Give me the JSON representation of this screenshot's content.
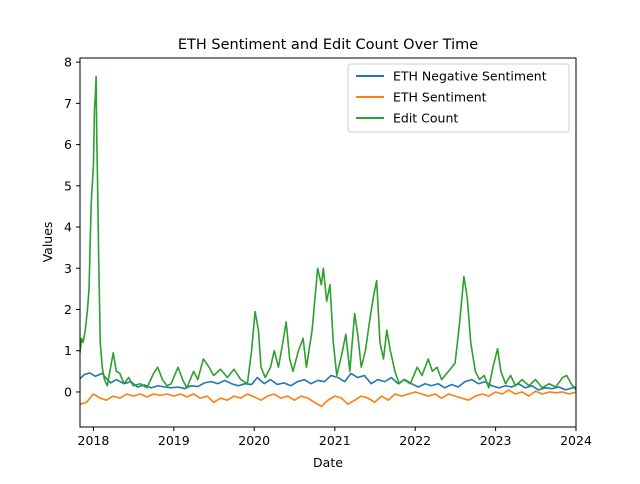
{
  "chart_data": {
    "type": "line",
    "title": "ETH Sentiment and Edit Count Over Time",
    "xlabel": "Date",
    "ylabel": "Values",
    "xlim": [
      "2017-11-01",
      "2024-01-01"
    ],
    "ylim": [
      -0.85,
      8.1
    ],
    "x_ticks": [
      "2018",
      "2019",
      "2020",
      "2021",
      "2022",
      "2023",
      "2024"
    ],
    "y_ticks": [
      "0",
      "1",
      "2",
      "3",
      "4",
      "5",
      "6",
      "7",
      "8"
    ],
    "grid": false,
    "legend": "top-right",
    "series": [
      {
        "name": "ETH Negative Sentiment",
        "color": "#1f77b4",
        "points": [
          [
            "2017-11-01",
            0.32
          ],
          [
            "2017-11-20",
            0.42
          ],
          [
            "2017-12-15",
            0.46
          ],
          [
            "2018-01-10",
            0.38
          ],
          [
            "2018-02-10",
            0.45
          ],
          [
            "2018-02-25",
            0.35
          ],
          [
            "2018-03-20",
            0.22
          ],
          [
            "2018-04-15",
            0.3
          ],
          [
            "2018-05-20",
            0.2
          ],
          [
            "2018-06-20",
            0.25
          ],
          [
            "2018-07-20",
            0.12
          ],
          [
            "2018-08-20",
            0.17
          ],
          [
            "2018-09-20",
            0.1
          ],
          [
            "2018-10-20",
            0.15
          ],
          [
            "2018-11-20",
            0.12
          ],
          [
            "2018-12-20",
            0.1
          ],
          [
            "2019-01-20",
            0.12
          ],
          [
            "2019-02-20",
            0.08
          ],
          [
            "2019-03-20",
            0.15
          ],
          [
            "2019-04-20",
            0.13
          ],
          [
            "2019-05-20",
            0.22
          ],
          [
            "2019-06-20",
            0.25
          ],
          [
            "2019-07-20",
            0.2
          ],
          [
            "2019-08-20",
            0.28
          ],
          [
            "2019-09-20",
            0.2
          ],
          [
            "2019-10-20",
            0.15
          ],
          [
            "2019-11-20",
            0.2
          ],
          [
            "2019-12-20",
            0.18
          ],
          [
            "2020-01-15",
            0.35
          ],
          [
            "2020-02-15",
            0.2
          ],
          [
            "2020-03-15",
            0.3
          ],
          [
            "2020-04-15",
            0.18
          ],
          [
            "2020-05-15",
            0.22
          ],
          [
            "2020-06-15",
            0.15
          ],
          [
            "2020-07-15",
            0.25
          ],
          [
            "2020-08-15",
            0.3
          ],
          [
            "2020-09-15",
            0.2
          ],
          [
            "2020-10-15",
            0.28
          ],
          [
            "2020-11-15",
            0.25
          ],
          [
            "2020-12-15",
            0.4
          ],
          [
            "2021-01-15",
            0.35
          ],
          [
            "2021-02-15",
            0.25
          ],
          [
            "2021-03-15",
            0.45
          ],
          [
            "2021-04-15",
            0.35
          ],
          [
            "2021-05-15",
            0.4
          ],
          [
            "2021-06-15",
            0.2
          ],
          [
            "2021-07-15",
            0.3
          ],
          [
            "2021-08-15",
            0.25
          ],
          [
            "2021-09-15",
            0.35
          ],
          [
            "2021-10-15",
            0.2
          ],
          [
            "2021-11-15",
            0.3
          ],
          [
            "2021-12-15",
            0.2
          ],
          [
            "2022-01-15",
            0.12
          ],
          [
            "2022-02-15",
            0.2
          ],
          [
            "2022-03-15",
            0.15
          ],
          [
            "2022-04-15",
            0.2
          ],
          [
            "2022-05-15",
            0.1
          ],
          [
            "2022-06-15",
            0.18
          ],
          [
            "2022-07-15",
            0.12
          ],
          [
            "2022-08-15",
            0.25
          ],
          [
            "2022-09-15",
            0.3
          ],
          [
            "2022-10-15",
            0.2
          ],
          [
            "2022-11-15",
            0.25
          ],
          [
            "2022-12-15",
            0.15
          ],
          [
            "2023-01-15",
            0.1
          ],
          [
            "2023-02-15",
            0.15
          ],
          [
            "2023-03-15",
            0.12
          ],
          [
            "2023-04-15",
            0.2
          ],
          [
            "2023-05-15",
            0.1
          ],
          [
            "2023-06-15",
            0.15
          ],
          [
            "2023-07-15",
            0.05
          ],
          [
            "2023-08-15",
            0.1
          ],
          [
            "2023-09-15",
            0.08
          ],
          [
            "2023-10-15",
            0.12
          ],
          [
            "2023-11-15",
            0.05
          ],
          [
            "2023-12-15",
            0.1
          ],
          [
            "2024-01-01",
            0.12
          ]
        ]
      },
      {
        "name": "ETH Sentiment",
        "color": "#ff7f0e",
        "points": [
          [
            "2017-11-01",
            -0.3
          ],
          [
            "2017-12-01",
            -0.25
          ],
          [
            "2018-01-01",
            -0.05
          ],
          [
            "2018-02-01",
            -0.15
          ],
          [
            "2018-03-01",
            -0.2
          ],
          [
            "2018-04-01",
            -0.1
          ],
          [
            "2018-05-01",
            -0.15
          ],
          [
            "2018-06-01",
            -0.05
          ],
          [
            "2018-07-01",
            -0.1
          ],
          [
            "2018-08-01",
            -0.05
          ],
          [
            "2018-09-01",
            -0.12
          ],
          [
            "2018-10-01",
            -0.05
          ],
          [
            "2018-11-01",
            -0.08
          ],
          [
            "2018-12-01",
            -0.05
          ],
          [
            "2019-01-01",
            -0.1
          ],
          [
            "2019-02-01",
            -0.05
          ],
          [
            "2019-03-01",
            -0.12
          ],
          [
            "2019-04-01",
            -0.05
          ],
          [
            "2019-05-01",
            -0.15
          ],
          [
            "2019-06-01",
            -0.1
          ],
          [
            "2019-07-01",
            -0.25
          ],
          [
            "2019-08-01",
            -0.15
          ],
          [
            "2019-09-01",
            -0.2
          ],
          [
            "2019-10-01",
            -0.1
          ],
          [
            "2019-11-01",
            -0.15
          ],
          [
            "2019-12-01",
            -0.05
          ],
          [
            "2020-01-01",
            -0.12
          ],
          [
            "2020-02-01",
            -0.2
          ],
          [
            "2020-03-01",
            -0.1
          ],
          [
            "2020-04-01",
            -0.05
          ],
          [
            "2020-05-01",
            -0.15
          ],
          [
            "2020-06-01",
            -0.1
          ],
          [
            "2020-07-01",
            -0.2
          ],
          [
            "2020-08-01",
            -0.1
          ],
          [
            "2020-09-01",
            -0.15
          ],
          [
            "2020-10-01",
            -0.25
          ],
          [
            "2020-11-01",
            -0.35
          ],
          [
            "2020-12-01",
            -0.2
          ],
          [
            "2021-01-01",
            -0.1
          ],
          [
            "2021-02-01",
            -0.15
          ],
          [
            "2021-03-01",
            -0.3
          ],
          [
            "2021-04-01",
            -0.2
          ],
          [
            "2021-05-01",
            -0.1
          ],
          [
            "2021-06-01",
            -0.15
          ],
          [
            "2021-07-01",
            -0.25
          ],
          [
            "2021-08-01",
            -0.1
          ],
          [
            "2021-09-01",
            -0.2
          ],
          [
            "2021-10-01",
            -0.05
          ],
          [
            "2021-11-01",
            -0.1
          ],
          [
            "2021-12-01",
            -0.05
          ],
          [
            "2022-01-01",
            0.0
          ],
          [
            "2022-02-01",
            -0.05
          ],
          [
            "2022-03-01",
            -0.1
          ],
          [
            "2022-04-01",
            -0.05
          ],
          [
            "2022-05-01",
            -0.15
          ],
          [
            "2022-06-01",
            -0.05
          ],
          [
            "2022-07-01",
            -0.1
          ],
          [
            "2022-08-01",
            -0.15
          ],
          [
            "2022-09-01",
            -0.2
          ],
          [
            "2022-10-01",
            -0.1
          ],
          [
            "2022-11-01",
            -0.05
          ],
          [
            "2022-12-01",
            -0.1
          ],
          [
            "2023-01-01",
            0.0
          ],
          [
            "2023-02-01",
            -0.05
          ],
          [
            "2023-03-01",
            0.05
          ],
          [
            "2023-04-01",
            -0.05
          ],
          [
            "2023-05-01",
            0.0
          ],
          [
            "2023-06-01",
            -0.1
          ],
          [
            "2023-07-01",
            0.02
          ],
          [
            "2023-08-01",
            -0.05
          ],
          [
            "2023-09-01",
            0.0
          ],
          [
            "2023-10-01",
            -0.02
          ],
          [
            "2023-11-01",
            0.0
          ],
          [
            "2023-12-01",
            -0.05
          ],
          [
            "2024-01-01",
            0.0
          ]
        ]
      },
      {
        "name": "Edit Count",
        "color": "#2ca02c",
        "points": [
          [
            "2017-11-01",
            0.95
          ],
          [
            "2017-11-08",
            1.3
          ],
          [
            "2017-11-15",
            1.2
          ],
          [
            "2017-11-25",
            1.5
          ],
          [
            "2017-12-05",
            2.0
          ],
          [
            "2017-12-12",
            2.5
          ],
          [
            "2017-12-18",
            3.8
          ],
          [
            "2017-12-22",
            4.6
          ],
          [
            "2018-01-01",
            5.5
          ],
          [
            "2018-01-06",
            6.9
          ],
          [
            "2018-01-10",
            7.2
          ],
          [
            "2018-01-13",
            7.65
          ],
          [
            "2018-01-16",
            6.2
          ],
          [
            "2018-01-20",
            5.0
          ],
          [
            "2018-01-25",
            3.2
          ],
          [
            "2018-02-01",
            1.2
          ],
          [
            "2018-02-10",
            0.6
          ],
          [
            "2018-02-20",
            0.3
          ],
          [
            "2018-03-05",
            0.15
          ],
          [
            "2018-03-20",
            0.6
          ],
          [
            "2018-04-01",
            0.95
          ],
          [
            "2018-04-15",
            0.5
          ],
          [
            "2018-05-01",
            0.45
          ],
          [
            "2018-05-20",
            0.2
          ],
          [
            "2018-06-10",
            0.35
          ],
          [
            "2018-07-01",
            0.15
          ],
          [
            "2018-08-01",
            0.2
          ],
          [
            "2018-09-01",
            0.1
          ],
          [
            "2018-10-01",
            0.45
          ],
          [
            "2018-10-20",
            0.6
          ],
          [
            "2018-11-10",
            0.3
          ],
          [
            "2018-12-01",
            0.15
          ],
          [
            "2018-12-20",
            0.2
          ],
          [
            "2019-01-20",
            0.6
          ],
          [
            "2019-02-10",
            0.3
          ],
          [
            "2019-03-01",
            0.1
          ],
          [
            "2019-04-01",
            0.5
          ],
          [
            "2019-04-20",
            0.3
          ],
          [
            "2019-05-15",
            0.8
          ],
          [
            "2019-06-10",
            0.6
          ],
          [
            "2019-07-01",
            0.4
          ],
          [
            "2019-08-01",
            0.55
          ],
          [
            "2019-09-01",
            0.35
          ],
          [
            "2019-10-01",
            0.55
          ],
          [
            "2019-11-01",
            0.3
          ],
          [
            "2019-12-01",
            0.2
          ],
          [
            "2019-12-20",
            1.0
          ],
          [
            "2020-01-05",
            1.95
          ],
          [
            "2020-01-20",
            1.5
          ],
          [
            "2020-02-01",
            0.6
          ],
          [
            "2020-02-20",
            0.35
          ],
          [
            "2020-03-15",
            0.6
          ],
          [
            "2020-04-01",
            1.0
          ],
          [
            "2020-04-20",
            0.6
          ],
          [
            "2020-05-10",
            1.2
          ],
          [
            "2020-05-25",
            1.7
          ],
          [
            "2020-06-10",
            0.8
          ],
          [
            "2020-06-25",
            0.5
          ],
          [
            "2020-07-20",
            1.0
          ],
          [
            "2020-08-10",
            1.3
          ],
          [
            "2020-08-25",
            0.6
          ],
          [
            "2020-09-20",
            1.5
          ],
          [
            "2020-10-05",
            2.4
          ],
          [
            "2020-10-15",
            3.0
          ],
          [
            "2020-11-01",
            2.6
          ],
          [
            "2020-11-10",
            3.0
          ],
          [
            "2020-11-25",
            2.2
          ],
          [
            "2020-12-10",
            2.6
          ],
          [
            "2020-12-25",
            1.2
          ],
          [
            "2021-01-10",
            0.4
          ],
          [
            "2021-02-01",
            0.9
          ],
          [
            "2021-02-20",
            1.4
          ],
          [
            "2021-03-10",
            0.5
          ],
          [
            "2021-04-01",
            1.9
          ],
          [
            "2021-04-15",
            1.4
          ],
          [
            "2021-05-01",
            0.6
          ],
          [
            "2021-05-20",
            1.0
          ],
          [
            "2021-06-10",
            1.8
          ],
          [
            "2021-06-25",
            2.3
          ],
          [
            "2021-07-10",
            2.7
          ],
          [
            "2021-07-25",
            1.2
          ],
          [
            "2021-08-10",
            0.8
          ],
          [
            "2021-08-25",
            1.5
          ],
          [
            "2021-09-10",
            1.0
          ],
          [
            "2021-10-01",
            0.5
          ],
          [
            "2021-10-20",
            0.2
          ],
          [
            "2021-11-10",
            0.3
          ],
          [
            "2021-12-10",
            0.2
          ],
          [
            "2022-01-10",
            0.6
          ],
          [
            "2022-02-01",
            0.4
          ],
          [
            "2022-03-01",
            0.8
          ],
          [
            "2022-03-20",
            0.5
          ],
          [
            "2022-04-10",
            0.6
          ],
          [
            "2022-05-01",
            0.3
          ],
          [
            "2022-06-01",
            0.5
          ],
          [
            "2022-07-01",
            0.7
          ],
          [
            "2022-07-20",
            1.6
          ],
          [
            "2022-08-10",
            2.8
          ],
          [
            "2022-08-25",
            2.3
          ],
          [
            "2022-09-10",
            1.2
          ],
          [
            "2022-10-01",
            0.5
          ],
          [
            "2022-10-20",
            0.3
          ],
          [
            "2022-11-10",
            0.4
          ],
          [
            "2022-12-01",
            0.1
          ],
          [
            "2022-12-20",
            0.6
          ],
          [
            "2023-01-10",
            1.05
          ],
          [
            "2023-01-25",
            0.5
          ],
          [
            "2023-02-15",
            0.2
          ],
          [
            "2023-03-10",
            0.4
          ],
          [
            "2023-04-01",
            0.15
          ],
          [
            "2023-05-01",
            0.3
          ],
          [
            "2023-06-01",
            0.15
          ],
          [
            "2023-07-01",
            0.3
          ],
          [
            "2023-08-01",
            0.1
          ],
          [
            "2023-09-01",
            0.2
          ],
          [
            "2023-10-01",
            0.12
          ],
          [
            "2023-11-01",
            0.35
          ],
          [
            "2023-11-20",
            0.4
          ],
          [
            "2023-12-10",
            0.2
          ],
          [
            "2024-01-01",
            0.05
          ]
        ]
      }
    ]
  }
}
